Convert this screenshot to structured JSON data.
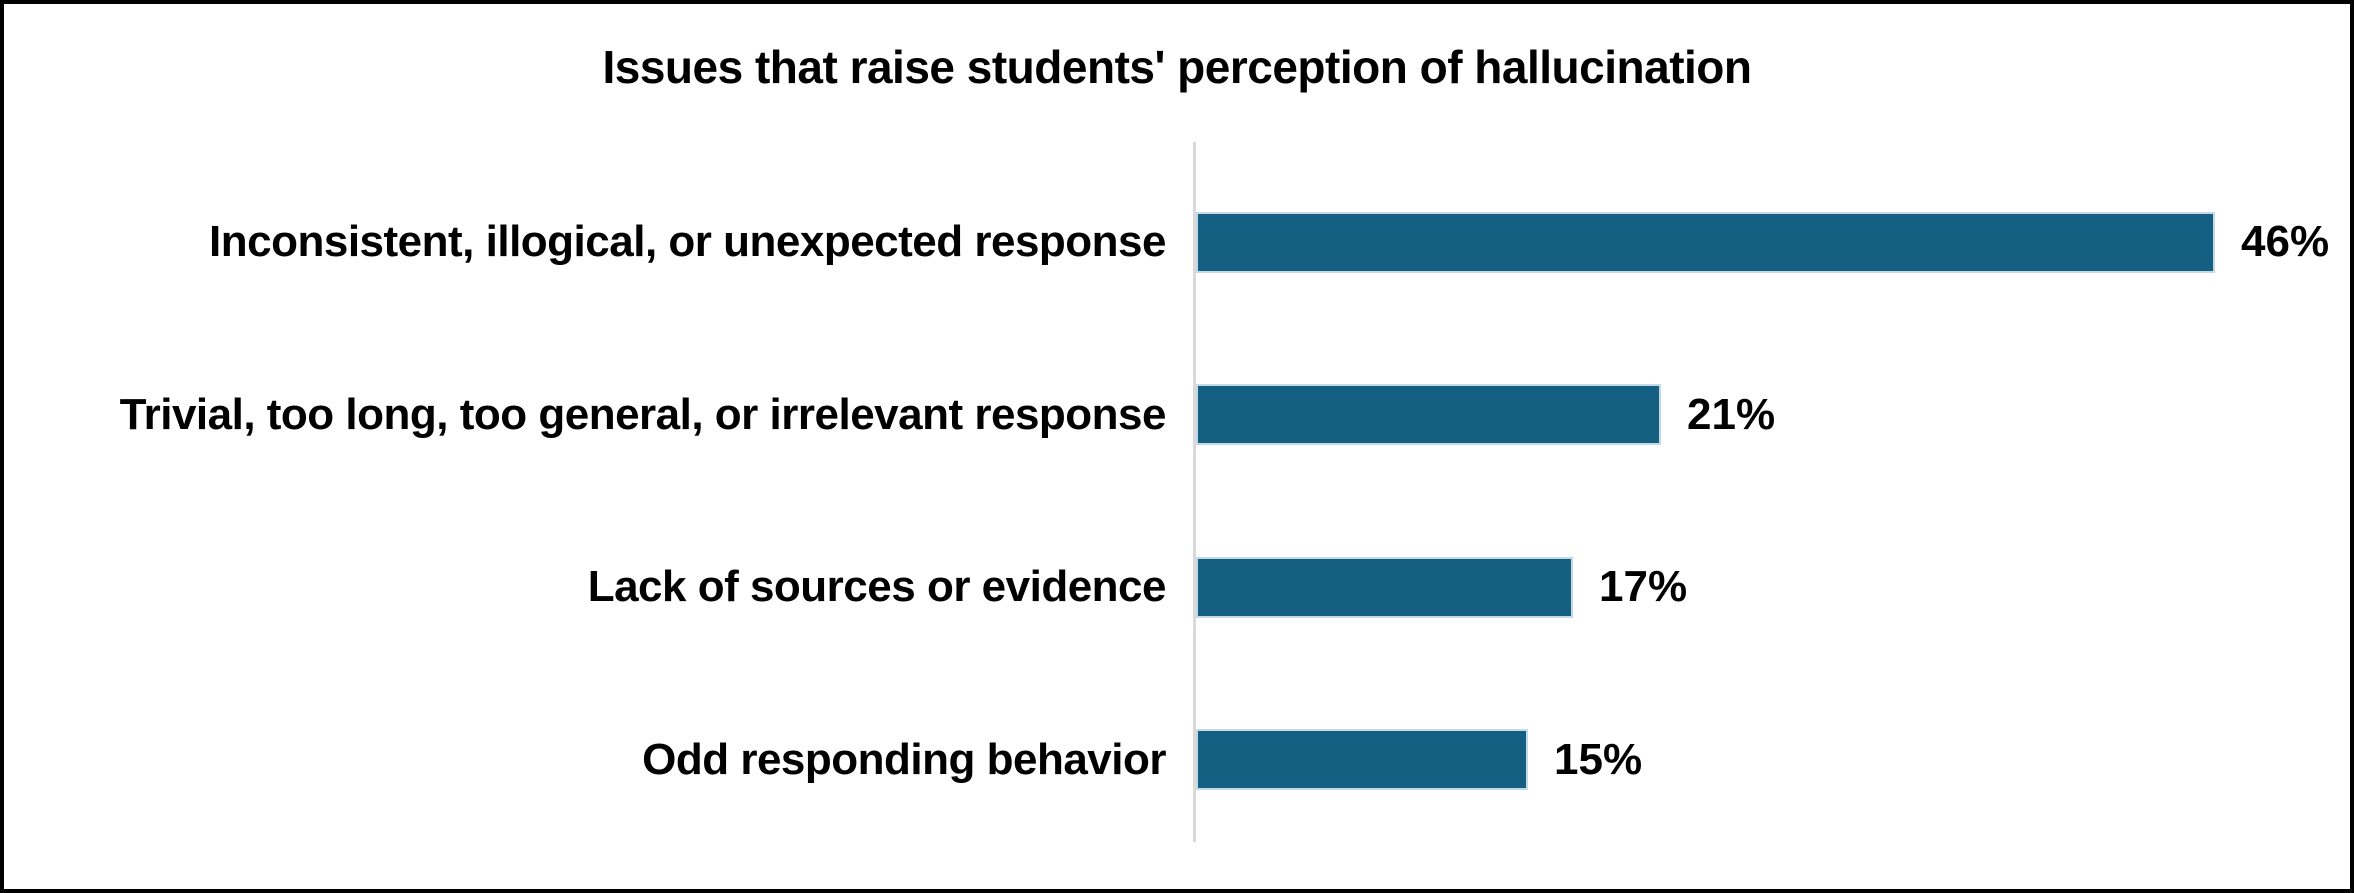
{
  "title": "Issues that raise students' perception of hallucination",
  "chart_data": {
    "type": "bar",
    "orientation": "horizontal",
    "title": "Issues that raise students' perception of hallucination",
    "categories": [
      "Inconsistent, illogical, or unexpected response",
      "Trivial, too long, too general, or irrelevant response",
      "Lack of sources or evidence",
      "Odd responding behavior"
    ],
    "values": [
      46,
      21,
      17,
      15
    ],
    "value_suffix": "%",
    "data_labels": [
      "46%",
      "21%",
      "17%",
      "15%"
    ],
    "xlabel": "",
    "ylabel": "",
    "grid": false,
    "legend": false,
    "colors": {
      "bar_fill": "#156082",
      "bar_edge": "#c3d9e6",
      "axis_line": "#d9d9d9",
      "text": "#000000",
      "background": "#ffffff",
      "frame_border": "#000000"
    }
  }
}
